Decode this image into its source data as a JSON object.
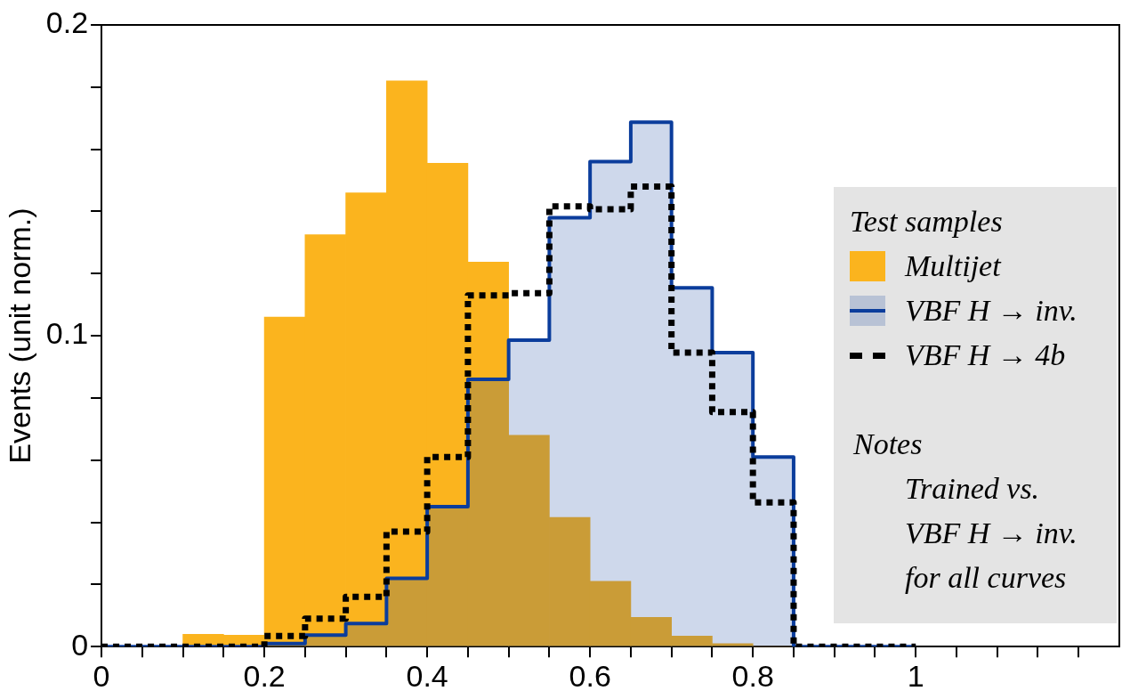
{
  "chart_data": {
    "type": "histogram",
    "ylabel": "Events (unit norm.)",
    "legend_title": "Test samples",
    "legend": "right",
    "grid": false,
    "bins": [
      0,
      0.05,
      0.1,
      0.15,
      0.2,
      0.25,
      0.3,
      0.35,
      0.4,
      0.45,
      0.5,
      0.55,
      0.6,
      0.65,
      0.7,
      0.75,
      0.8,
      0.85,
      0.9,
      0.95,
      1
    ],
    "series": [
      {
        "name": "Multijet",
        "color": "#fbb41e",
        "values": [
          0,
          0,
          0.004,
          0.0037,
          0.106,
          0.1325,
          0.146,
          0.182,
          0.1555,
          0.1237,
          0.068,
          0.0416,
          0.021,
          0.0094,
          0.0034,
          0.001,
          0,
          0,
          0,
          0
        ]
      },
      {
        "name": "VBF H → inv.",
        "color": "#0b3d9c",
        "line_style": "solid",
        "values": [
          0,
          0,
          0,
          0,
          0.001,
          0.0037,
          0.0074,
          0.022,
          0.045,
          0.086,
          0.0986,
          0.138,
          0.156,
          0.1687,
          0.1154,
          0.0946,
          0.061,
          0,
          0,
          0
        ]
      },
      {
        "name": "VBF H → 4b",
        "color": "#000000",
        "line_style": "dashed",
        "values": [
          0,
          0,
          0,
          0,
          0.0034,
          0.009,
          0.016,
          0.037,
          0.061,
          0.113,
          0.1137,
          0.1416,
          0.1407,
          0.148,
          0.0946,
          0.0755,
          0.0464,
          0,
          0,
          0
        ]
      }
    ],
    "xlim": [
      0,
      1.25
    ],
    "xticks": [
      0,
      {
        "value": 0.05,
        "label": null
      },
      {
        "value": 0.1,
        "label": null
      },
      {
        "value": 0.15,
        "label": null
      },
      0.2,
      {
        "value": 0.25,
        "label": null
      },
      {
        "value": 0.3,
        "label": null
      },
      {
        "value": 0.35,
        "label": null
      },
      0.4,
      {
        "value": 0.45,
        "label": null
      },
      {
        "value": 0.5,
        "label": null
      },
      {
        "value": 0.55,
        "label": null
      },
      0.6,
      {
        "value": 0.65,
        "label": null
      },
      {
        "value": 0.7,
        "label": null
      },
      {
        "value": 0.75,
        "label": null
      },
      0.8,
      {
        "value": 0.85,
        "label": null
      },
      {
        "value": 0.9,
        "label": null
      },
      {
        "value": 0.95,
        "label": null
      },
      1,
      {
        "value": 1.05,
        "label": null
      },
      {
        "value": 1.1,
        "label": null
      },
      {
        "value": 1.15,
        "label": null
      },
      {
        "value": 1.2,
        "label": null
      }
    ],
    "ylim": [
      0,
      0.2
    ],
    "yticks": [
      0,
      {
        "value": 0.02,
        "label": null
      },
      {
        "value": 0.04,
        "label": null
      },
      {
        "value": 0.06,
        "label": null
      },
      {
        "value": 0.08,
        "label": null
      },
      0.1,
      {
        "value": 0.12,
        "label": null
      },
      {
        "value": 0.14,
        "label": null
      },
      {
        "value": 0.16,
        "label": null
      },
      {
        "value": 0.18,
        "label": null
      },
      0.2
    ],
    "annotations": [
      "Notes",
      "Trained vs.",
      "VBF H → inv.",
      "for all curves"
    ]
  }
}
